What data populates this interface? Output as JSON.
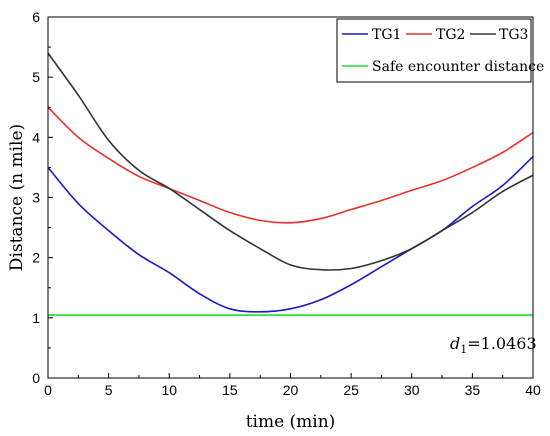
{
  "chart_data": {
    "type": "line",
    "xlabel": "time (min)",
    "ylabel": "Distance (n mile)",
    "xlim": [
      0,
      40
    ],
    "ylim": [
      0,
      6
    ],
    "x_ticks": [
      "0",
      "5",
      "10",
      "15",
      "20",
      "25",
      "30",
      "35",
      "40"
    ],
    "y_ticks": [
      "0",
      "1",
      "2",
      "3",
      "4",
      "5",
      "6"
    ],
    "grid": false,
    "legend_position": "top-right",
    "series": [
      {
        "name": "TG1",
        "color": "#1a1acc",
        "x": [
          0,
          2.5,
          5,
          7.5,
          10,
          12.5,
          15,
          17.5,
          20,
          22.5,
          25,
          27.5,
          30,
          32.5,
          35,
          37.5,
          40
        ],
        "y": [
          3.5,
          2.9,
          2.45,
          2.05,
          1.75,
          1.4,
          1.15,
          1.1,
          1.15,
          1.3,
          1.55,
          1.85,
          2.15,
          2.45,
          2.85,
          3.2,
          3.68
        ]
      },
      {
        "name": "TG2",
        "color": "#e8312f",
        "x": [
          0,
          2.5,
          5,
          7.5,
          10,
          12.5,
          15,
          17.5,
          20,
          22.5,
          25,
          27.5,
          30,
          32.5,
          35,
          37.5,
          40
        ],
        "y": [
          4.5,
          4.0,
          3.65,
          3.35,
          3.15,
          2.95,
          2.75,
          2.62,
          2.58,
          2.65,
          2.8,
          2.95,
          3.12,
          3.28,
          3.5,
          3.75,
          4.08
        ]
      },
      {
        "name": "TG3",
        "color": "#333333",
        "x": [
          0,
          2.5,
          5,
          7.5,
          10,
          12.5,
          15,
          17.5,
          20,
          22.5,
          25,
          27.5,
          30,
          32.5,
          35,
          37.5,
          40
        ],
        "y": [
          5.4,
          4.7,
          3.95,
          3.45,
          3.15,
          2.8,
          2.45,
          2.15,
          1.88,
          1.8,
          1.82,
          1.95,
          2.15,
          2.45,
          2.75,
          3.1,
          3.37
        ]
      },
      {
        "name": "Safe encounter distance",
        "color": "#22dd22",
        "x": [
          0,
          40
        ],
        "y": [
          1.0463,
          1.0463
        ]
      }
    ],
    "annotation": {
      "d_symbol": "d",
      "subscript": "1",
      "value_text": "=1.0463",
      "x": 29.5,
      "y": 0.72
    }
  }
}
